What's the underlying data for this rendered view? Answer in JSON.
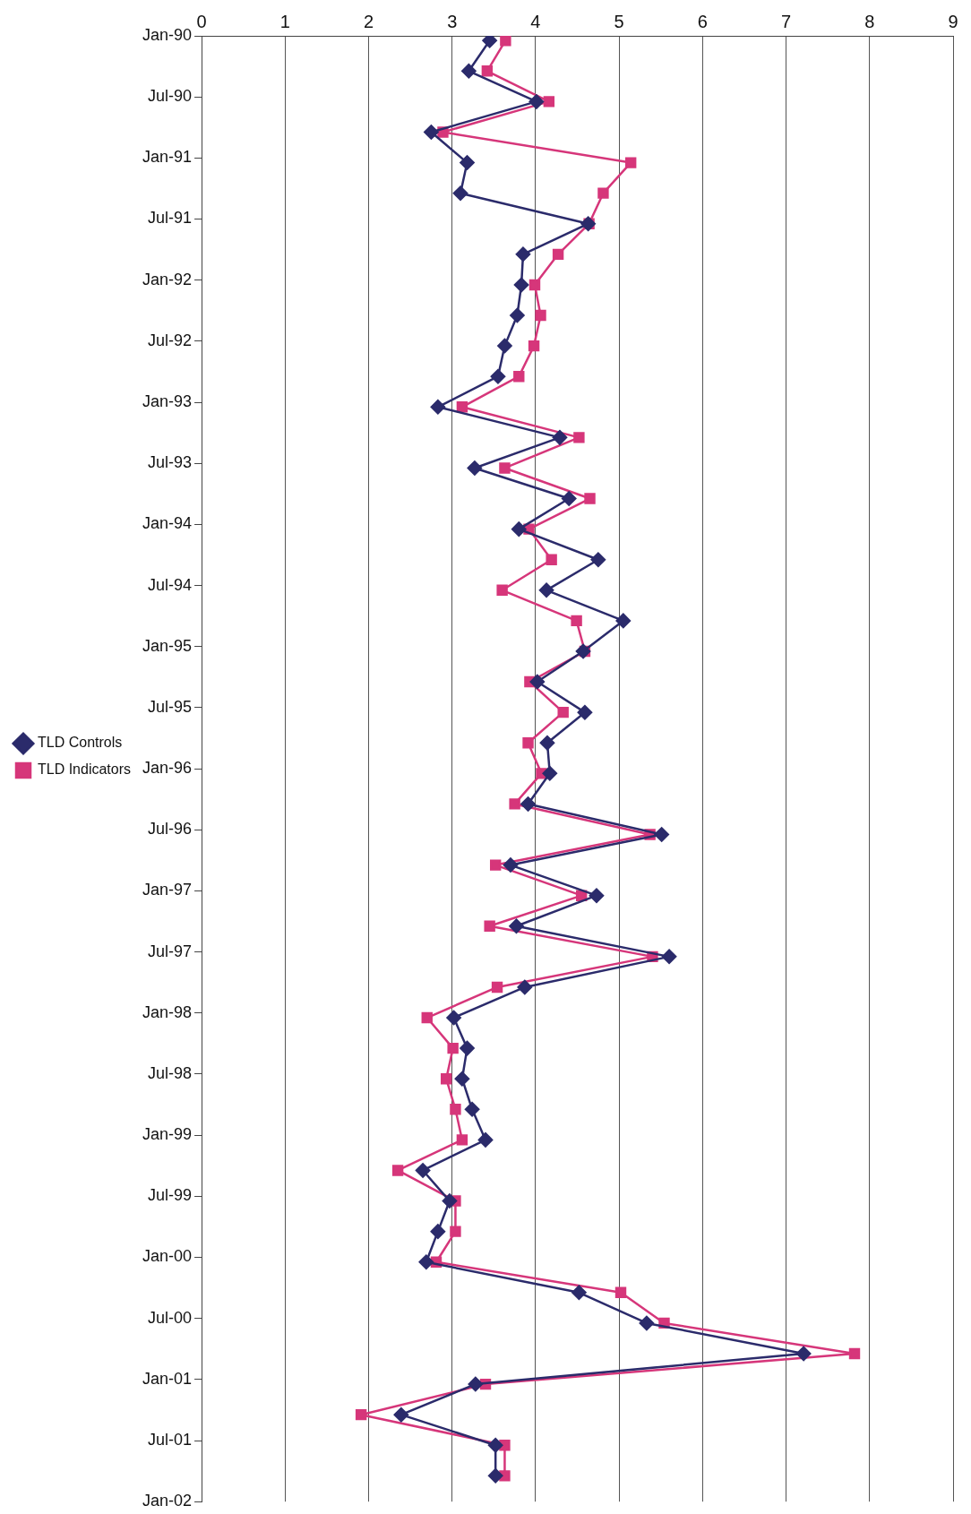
{
  "chart_data": {
    "type": "line",
    "x": [
      "1990-01-15",
      "1990-04-15",
      "1990-07-15",
      "1990-10-15",
      "1991-01-15",
      "1991-04-15",
      "1991-07-15",
      "1991-10-15",
      "1992-01-15",
      "1992-04-15",
      "1992-07-15",
      "1992-10-15",
      "1993-01-15",
      "1993-04-15",
      "1993-07-15",
      "1993-10-15",
      "1994-01-15",
      "1994-04-15",
      "1994-07-15",
      "1994-10-15",
      "1995-01-15",
      "1995-04-15",
      "1995-07-15",
      "1995-10-15",
      "1996-01-15",
      "1996-04-15",
      "1996-07-15",
      "1996-10-15",
      "1997-01-15",
      "1997-04-15",
      "1997-07-15",
      "1997-10-15",
      "1998-01-15",
      "1998-04-15",
      "1998-07-15",
      "1998-10-15",
      "1999-01-15",
      "1999-04-15",
      "1999-07-15",
      "1999-10-15",
      "2000-01-15",
      "2000-04-15",
      "2000-07-15",
      "2000-10-15",
      "2001-01-15",
      "2001-04-15",
      "2001-07-15",
      "2001-10-15"
    ],
    "series": [
      {
        "name": "TLD Controls",
        "color": "#2b2b6b",
        "marker": "diamond",
        "values": [
          3.45,
          3.2,
          4.01,
          2.75,
          3.18,
          3.1,
          4.63,
          3.85,
          3.83,
          3.78,
          3.63,
          3.55,
          2.83,
          4.29,
          3.27,
          4.4,
          3.8,
          4.75,
          4.13,
          5.05,
          4.57,
          4.02,
          4.59,
          4.14,
          4.17,
          3.91,
          5.51,
          3.7,
          4.73,
          3.77,
          5.6,
          3.87,
          3.02,
          3.18,
          3.12,
          3.24,
          3.4,
          2.65,
          2.97,
          2.83,
          2.69,
          4.52,
          5.33,
          7.21,
          3.28,
          2.39,
          3.52,
          3.52
        ]
      },
      {
        "name": "TLD Indicators",
        "color": "#d6367a",
        "marker": "square",
        "values": [
          3.64,
          3.42,
          4.16,
          2.89,
          5.14,
          4.81,
          4.64,
          4.27,
          3.99,
          4.06,
          3.98,
          3.8,
          3.12,
          4.52,
          3.63,
          4.65,
          3.92,
          4.19,
          3.6,
          4.49,
          4.59,
          3.93,
          4.33,
          3.91,
          4.07,
          3.75,
          5.37,
          3.52,
          4.55,
          3.45,
          5.4,
          3.54,
          2.7,
          3.01,
          2.93,
          3.04,
          3.12,
          2.35,
          3.04,
          3.04,
          2.81,
          5.02,
          5.54,
          7.82,
          3.4,
          1.91,
          3.63,
          3.63
        ]
      }
    ],
    "orientation": "horizontal",
    "ylim": [
      "2002-01",
      "1990-01"
    ],
    "yticks": [
      {
        "value": "1990-01",
        "label": "Jan-90"
      },
      {
        "value": "1990-07",
        "label": "Jul-90"
      },
      {
        "value": "1991-01",
        "label": "Jan-91"
      },
      {
        "value": "1991-07",
        "label": "Jul-91"
      },
      {
        "value": "1992-01",
        "label": "Jan-92"
      },
      {
        "value": "1992-07",
        "label": "Jul-92"
      },
      {
        "value": "1993-01",
        "label": "Jan-93"
      },
      {
        "value": "1993-07",
        "label": "Jul-93"
      },
      {
        "value": "1994-01",
        "label": "Jan-94"
      },
      {
        "value": "1994-07",
        "label": "Jul-94"
      },
      {
        "value": "1995-01",
        "label": "Jan-95"
      },
      {
        "value": "1995-07",
        "label": "Jul-95"
      },
      {
        "value": "1996-01",
        "label": "Jan-96"
      },
      {
        "value": "1996-07",
        "label": "Jul-96"
      },
      {
        "value": "1997-01",
        "label": "Jan-97"
      },
      {
        "value": "1997-07",
        "label": "Jul-97"
      },
      {
        "value": "1998-01",
        "label": "Jan-98"
      },
      {
        "value": "1998-07",
        "label": "Jul-98"
      },
      {
        "value": "1999-01",
        "label": "Jan-99"
      },
      {
        "value": "1999-07",
        "label": "Jul-99"
      },
      {
        "value": "2000-01",
        "label": "Jan-00"
      },
      {
        "value": "2000-07",
        "label": "Jul-00"
      },
      {
        "value": "2001-01",
        "label": "Jan-01"
      },
      {
        "value": "2001-07",
        "label": "Jul-01"
      },
      {
        "value": "2002-01",
        "label": "Jan-02"
      }
    ],
    "xlim": [
      0,
      9
    ],
    "xticks": [
      0,
      1,
      2,
      3,
      4,
      5,
      6,
      7,
      8,
      9
    ],
    "grid": "x",
    "legend": "left"
  }
}
